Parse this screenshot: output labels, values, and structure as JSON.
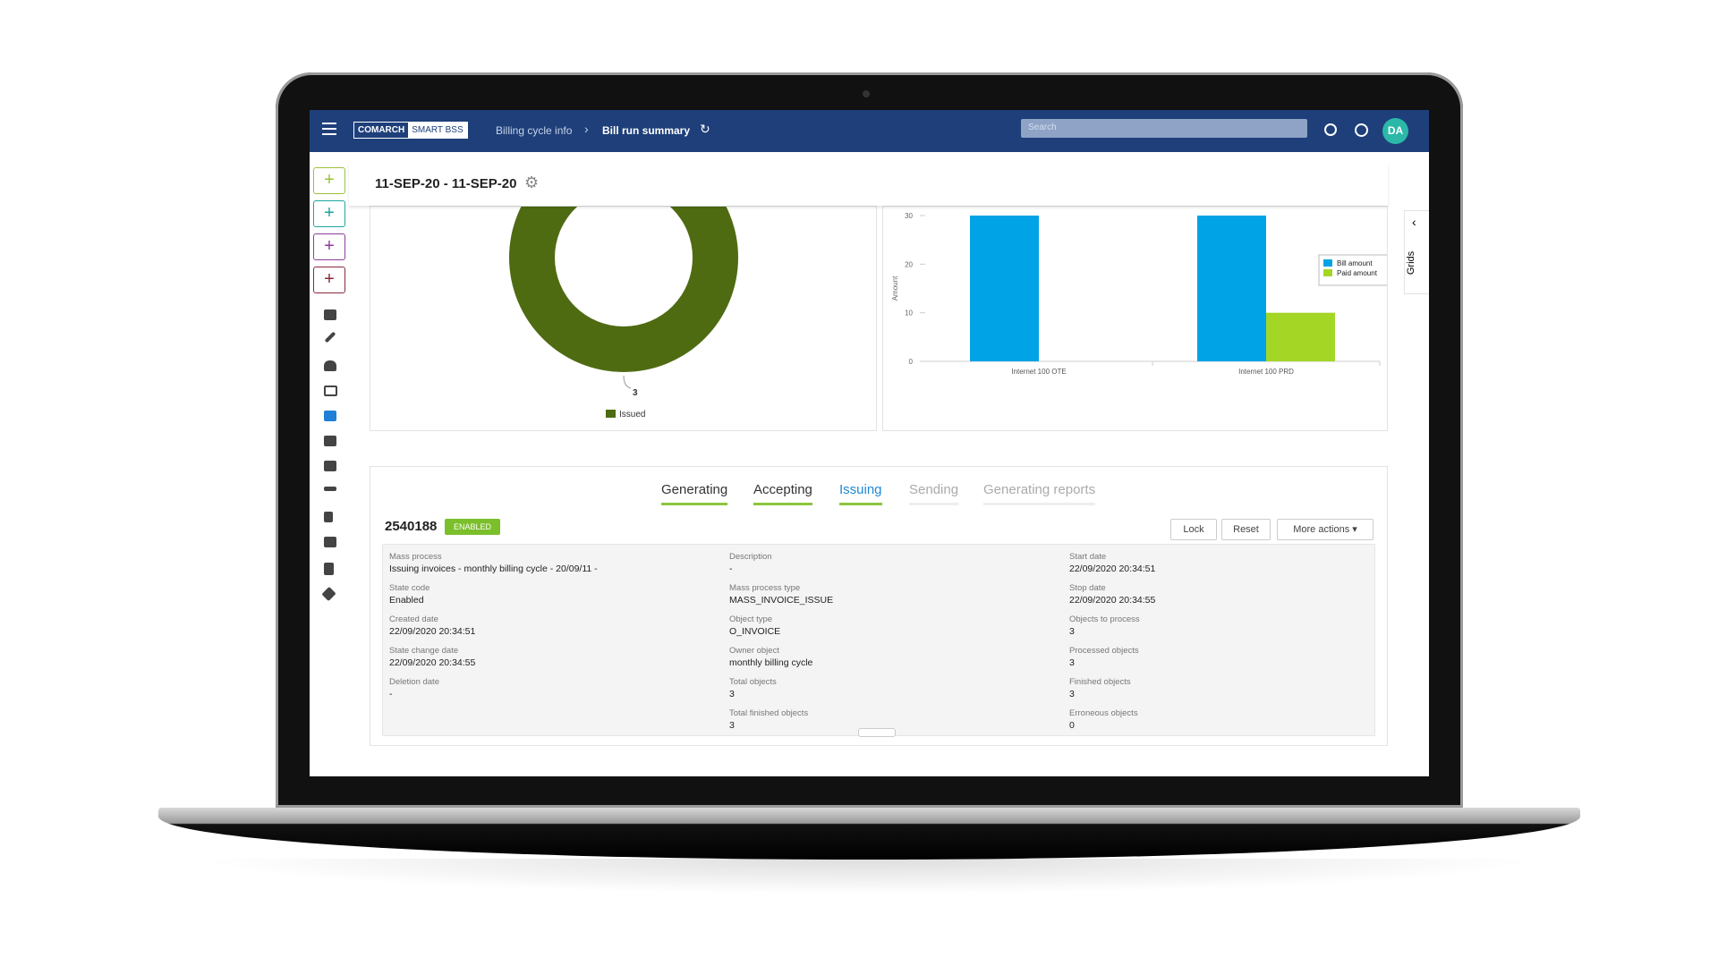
{
  "header": {
    "logo": "COMARCH",
    "logo_sub": "SMART BSS",
    "breadcrumb": [
      "Billing cycle info",
      "Bill run summary"
    ],
    "search_placeholder": "Search",
    "user_initials": "DA"
  },
  "title": "11-SEP-20 - 11-SEP-20",
  "side_tab": "Grids",
  "chart_data": [
    {
      "type": "pie",
      "donut": true,
      "categories": [
        "Issued"
      ],
      "values": [
        3
      ],
      "colors": [
        "#4e6b12"
      ]
    },
    {
      "type": "bar",
      "y_label": "Amount",
      "categories": [
        "Internet 100 OTE",
        "Internet 100 PRD"
      ],
      "series": [
        {
          "name": "Bill amount",
          "color": "#00a3e6",
          "values": [
            30,
            30
          ]
        },
        {
          "name": "Paid amount",
          "color": "#a4d626",
          "values": [
            null,
            10
          ]
        }
      ],
      "ylim": [
        0,
        30
      ],
      "yticks": [
        0,
        10,
        20,
        30
      ],
      "legend": "right"
    }
  ],
  "process": {
    "tabs": [
      {
        "label": "Generating",
        "status": "done"
      },
      {
        "label": "Accepting",
        "status": "done"
      },
      {
        "label": "Issuing",
        "status": "active"
      },
      {
        "label": "Sending",
        "status": "pending"
      },
      {
        "label": "Generating reports",
        "status": "pending"
      }
    ],
    "id": "2540188",
    "badge": "ENABLED",
    "actions": [
      "Lock",
      "Reset",
      "More actions"
    ],
    "fields": [
      [
        {
          "label": "Mass process",
          "value": "Issuing invoices - monthly billing cycle - 20/09/11 -"
        },
        {
          "label": "State code",
          "value": "Enabled"
        },
        {
          "label": "Created date",
          "value": "22/09/2020 20:34:51"
        },
        {
          "label": "State change date",
          "value": "22/09/2020 20:34:55"
        },
        {
          "label": "Deletion date",
          "value": "-"
        }
      ],
      [
        {
          "label": "Description",
          "value": "-"
        },
        {
          "label": "Mass process type",
          "value": "MASS_INVOICE_ISSUE"
        },
        {
          "label": "Object type",
          "value": "O_INVOICE"
        },
        {
          "label": "Owner object",
          "value": "monthly billing cycle"
        },
        {
          "label": "Total objects",
          "value": "3"
        },
        {
          "label": "Total finished objects",
          "value": "3"
        }
      ],
      [
        {
          "label": "Start date",
          "value": "22/09/2020 20:34:51"
        },
        {
          "label": "Stop date",
          "value": "22/09/2020 20:34:55"
        },
        {
          "label": "Objects to process",
          "value": "3"
        },
        {
          "label": "Processed objects",
          "value": "3"
        },
        {
          "label": "Finished objects",
          "value": "3"
        },
        {
          "label": "Erroneous objects",
          "value": "0"
        }
      ]
    ]
  }
}
